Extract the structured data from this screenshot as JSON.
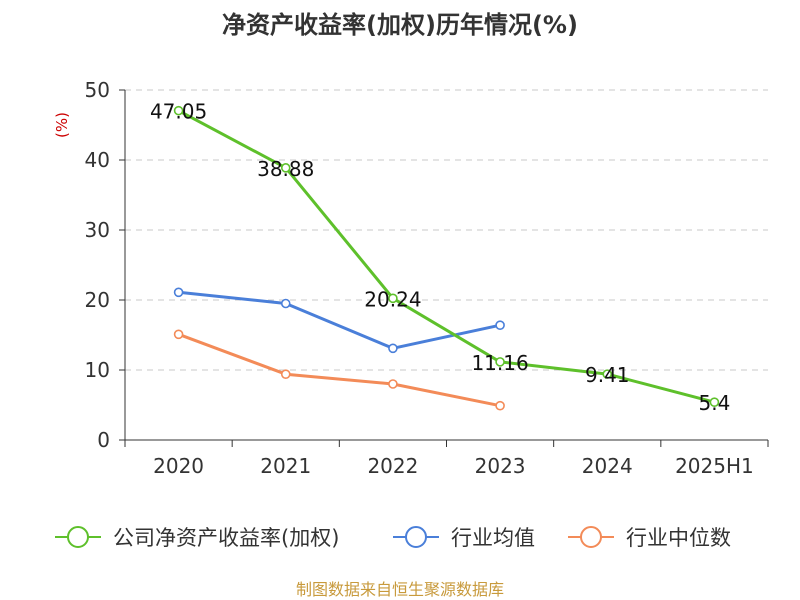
{
  "chart_data": {
    "type": "line",
    "title": "净资产收益率(加权)历年情况(%)",
    "ylabel": "(%)",
    "categories": [
      "2020",
      "2021",
      "2022",
      "2023",
      "2024",
      "2025H1"
    ],
    "ylim": [
      0,
      50
    ],
    "yticks": [
      "0",
      "10",
      "20",
      "30",
      "40",
      "50"
    ],
    "grid": "horizontal-dashed",
    "legend_position": "bottom",
    "series": [
      {
        "name": "公司净资产收益率(加权)",
        "color": "#5ec02b",
        "values": [
          47.05,
          38.88,
          20.24,
          11.16,
          9.41,
          5.4
        ],
        "labels": [
          "47.05",
          "38.88",
          "20.24",
          "11.16",
          "9.41",
          "5.4"
        ]
      },
      {
        "name": "行业均值",
        "color": "#4a7fd9",
        "values": [
          21.1,
          19.5,
          13.1,
          16.4,
          null,
          null
        ]
      },
      {
        "name": "行业中位数",
        "color": "#f38b58",
        "values": [
          15.1,
          9.4,
          8.0,
          4.9,
          null,
          null
        ]
      }
    ]
  },
  "source": "制图数据来自恒生聚源数据库"
}
